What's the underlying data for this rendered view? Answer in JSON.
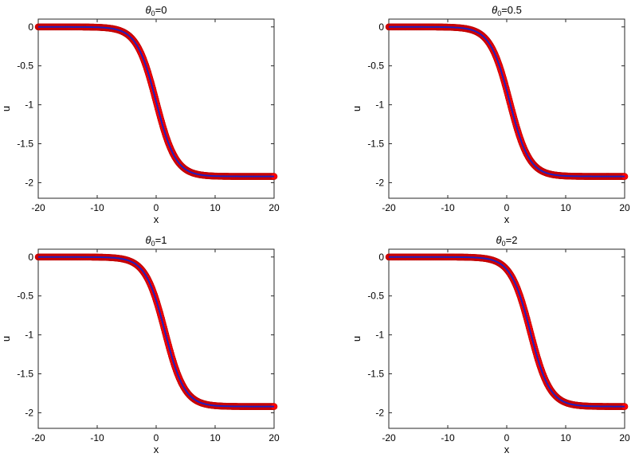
{
  "chart_data": [
    {
      "type": "line",
      "title": {
        "symbol": "θ",
        "subscript": "0",
        "value_text": "=0"
      },
      "xlabel": "x",
      "ylabel": "u",
      "xlim": [
        -20,
        20
      ],
      "ylim": [
        -2.2,
        0.1
      ],
      "xticks": [
        -20,
        -10,
        0,
        10,
        20
      ],
      "yticks": [
        0,
        -0.5,
        -1,
        -1.5,
        -2
      ],
      "xtick_labels": [
        "-20",
        "-10",
        "0",
        "10",
        "20"
      ],
      "ytick_labels": [
        "0",
        "-0.5",
        "-1",
        "-1.5",
        "-2"
      ],
      "curve": {
        "amplitude": -1.92,
        "steepness": 0.6,
        "center": 0
      },
      "series": [
        {
          "kind": "markers",
          "color": "#ff0000",
          "x": [
            -20,
            -19,
            -18,
            -17,
            -16,
            -15,
            -14,
            -13,
            -12,
            -11,
            -10,
            -9,
            -8,
            -7,
            -6,
            -5,
            -4,
            -3,
            -2,
            -1,
            0,
            1,
            2,
            3,
            4,
            5,
            6,
            7,
            8,
            9,
            10,
            11,
            12,
            13,
            14,
            15,
            16,
            17,
            18,
            19,
            20
          ],
          "y": [
            0,
            0,
            0,
            0,
            0,
            0,
            0,
            0,
            0,
            0,
            0,
            -0.01,
            -0.02,
            -0.03,
            -0.05,
            -0.09,
            -0.16,
            -0.26,
            -0.43,
            -0.67,
            -0.96,
            -1.25,
            -1.49,
            -1.66,
            -1.76,
            -1.83,
            -1.87,
            -1.89,
            -1.9,
            -1.91,
            -1.92,
            -1.92,
            -1.92,
            -1.92,
            -1.92,
            -1.92,
            -1.92,
            -1.92,
            -1.92,
            -1.92,
            -1.92
          ]
        },
        {
          "kind": "line",
          "color": "#1f1fbf",
          "x": [
            -20,
            -19,
            -18,
            -17,
            -16,
            -15,
            -14,
            -13,
            -12,
            -11,
            -10,
            -9,
            -8,
            -7,
            -6,
            -5,
            -4,
            -3,
            -2,
            -1,
            0,
            1,
            2,
            3,
            4,
            5,
            6,
            7,
            8,
            9,
            10,
            11,
            12,
            13,
            14,
            15,
            16,
            17,
            18,
            19,
            20
          ],
          "y": [
            0,
            0,
            0,
            0,
            0,
            0,
            0,
            0,
            0,
            0,
            0,
            -0.01,
            -0.02,
            -0.03,
            -0.05,
            -0.09,
            -0.16,
            -0.26,
            -0.43,
            -0.67,
            -0.96,
            -1.25,
            -1.49,
            -1.66,
            -1.76,
            -1.83,
            -1.87,
            -1.89,
            -1.9,
            -1.91,
            -1.92,
            -1.92,
            -1.92,
            -1.92,
            -1.92,
            -1.92,
            -1.92,
            -1.92,
            -1.92,
            -1.92,
            -1.92
          ]
        }
      ]
    },
    {
      "type": "line",
      "title": {
        "symbol": "θ",
        "subscript": "0",
        "value_text": "=0.5"
      },
      "xlabel": "x",
      "ylabel": "u",
      "xlim": [
        -20,
        20
      ],
      "ylim": [
        -2.2,
        0.1
      ],
      "xticks": [
        -20,
        -10,
        0,
        10,
        20
      ],
      "yticks": [
        0,
        -0.5,
        -1,
        -1.5,
        -2
      ],
      "xtick_labels": [
        "-20",
        "-10",
        "0",
        "10",
        "20"
      ],
      "ytick_labels": [
        "0",
        "-0.5",
        "-1",
        "-1.5",
        "-2"
      ],
      "curve": {
        "amplitude": -1.92,
        "steepness": 0.6,
        "center": 0.5
      },
      "series": [
        {
          "kind": "markers",
          "color": "#ff0000",
          "x": [
            -20,
            -19,
            -18,
            -17,
            -16,
            -15,
            -14,
            -13,
            -12,
            -11,
            -10,
            -9,
            -8,
            -7,
            -6,
            -5,
            -4,
            -3,
            -2,
            -1,
            0,
            1,
            2,
            3,
            4,
            5,
            6,
            7,
            8,
            9,
            10,
            11,
            12,
            13,
            14,
            15,
            16,
            17,
            18,
            19,
            20
          ],
          "y": [
            0,
            0,
            0,
            0,
            0,
            0,
            0,
            0,
            0,
            0,
            0,
            0,
            -0.01,
            -0.02,
            -0.04,
            -0.07,
            -0.12,
            -0.21,
            -0.35,
            -0.55,
            -0.82,
            -1.1,
            -1.37,
            -1.57,
            -1.71,
            -1.8,
            -1.85,
            -1.88,
            -1.9,
            -1.91,
            -1.91,
            -1.92,
            -1.92,
            -1.92,
            -1.92,
            -1.92,
            -1.92,
            -1.92,
            -1.92,
            -1.92,
            -1.92
          ]
        },
        {
          "kind": "line",
          "color": "#1f1fbf",
          "x": [
            -20,
            -19,
            -18,
            -17,
            -16,
            -15,
            -14,
            -13,
            -12,
            -11,
            -10,
            -9,
            -8,
            -7,
            -6,
            -5,
            -4,
            -3,
            -2,
            -1,
            0,
            1,
            2,
            3,
            4,
            5,
            6,
            7,
            8,
            9,
            10,
            11,
            12,
            13,
            14,
            15,
            16,
            17,
            18,
            19,
            20
          ],
          "y": [
            0,
            0,
            0,
            0,
            0,
            0,
            0,
            0,
            0,
            0,
            0,
            0,
            -0.01,
            -0.02,
            -0.04,
            -0.07,
            -0.12,
            -0.21,
            -0.35,
            -0.55,
            -0.82,
            -1.1,
            -1.37,
            -1.57,
            -1.71,
            -1.8,
            -1.85,
            -1.88,
            -1.9,
            -1.91,
            -1.91,
            -1.92,
            -1.92,
            -1.92,
            -1.92,
            -1.92,
            -1.92,
            -1.92,
            -1.92,
            -1.92,
            -1.92
          ]
        }
      ]
    },
    {
      "type": "line",
      "title": {
        "symbol": "θ",
        "subscript": "0",
        "value_text": "=1"
      },
      "xlabel": "x",
      "ylabel": "u",
      "xlim": [
        -20,
        20
      ],
      "ylim": [
        -2.2,
        0.1
      ],
      "xticks": [
        -20,
        -10,
        0,
        10,
        20
      ],
      "yticks": [
        0,
        -0.5,
        -1,
        -1.5,
        -2
      ],
      "xtick_labels": [
        "-20",
        "-10",
        "0",
        "10",
        "20"
      ],
      "ytick_labels": [
        "0",
        "-0.5",
        "-1",
        "-1.5",
        "-2"
      ],
      "curve": {
        "amplitude": -1.92,
        "steepness": 0.6,
        "center": 1.5
      },
      "series": [
        {
          "kind": "markers",
          "color": "#ff0000",
          "x": [
            -20,
            -19,
            -18,
            -17,
            -16,
            -15,
            -14,
            -13,
            -12,
            -11,
            -10,
            -9,
            -8,
            -7,
            -6,
            -5,
            -4,
            -3,
            -2,
            -1,
            0,
            1,
            2,
            3,
            4,
            5,
            6,
            7,
            8,
            9,
            10,
            11,
            12,
            13,
            14,
            15,
            16,
            17,
            18,
            19,
            20
          ],
          "y": [
            0,
            0,
            0,
            0,
            0,
            0,
            0,
            0,
            0,
            0,
            0,
            0,
            0,
            -0.01,
            -0.02,
            -0.04,
            -0.07,
            -0.12,
            -0.21,
            -0.35,
            -0.55,
            -0.82,
            -1.1,
            -1.37,
            -1.57,
            -1.71,
            -1.8,
            -1.85,
            -1.88,
            -1.9,
            -1.91,
            -1.91,
            -1.92,
            -1.92,
            -1.92,
            -1.92,
            -1.92,
            -1.92,
            -1.92,
            -1.92,
            -1.92
          ]
        },
        {
          "kind": "line",
          "color": "#1f1fbf",
          "x": [
            -20,
            -19,
            -18,
            -17,
            -16,
            -15,
            -14,
            -13,
            -12,
            -11,
            -10,
            -9,
            -8,
            -7,
            -6,
            -5,
            -4,
            -3,
            -2,
            -1,
            0,
            1,
            2,
            3,
            4,
            5,
            6,
            7,
            8,
            9,
            10,
            11,
            12,
            13,
            14,
            15,
            16,
            17,
            18,
            19,
            20
          ],
          "y": [
            0,
            0,
            0,
            0,
            0,
            0,
            0,
            0,
            0,
            0,
            0,
            0,
            0,
            -0.01,
            -0.02,
            -0.04,
            -0.07,
            -0.12,
            -0.21,
            -0.35,
            -0.55,
            -0.82,
            -1.1,
            -1.37,
            -1.57,
            -1.71,
            -1.8,
            -1.85,
            -1.88,
            -1.9,
            -1.91,
            -1.91,
            -1.92,
            -1.92,
            -1.92,
            -1.92,
            -1.92,
            -1.92,
            -1.92,
            -1.92,
            -1.92
          ]
        }
      ]
    },
    {
      "type": "line",
      "title": {
        "symbol": "θ",
        "subscript": "0",
        "value_text": "=2"
      },
      "xlabel": "x",
      "ylabel": "u",
      "xlim": [
        -20,
        20
      ],
      "ylim": [
        -2.2,
        0.1
      ],
      "xticks": [
        -20,
        -10,
        0,
        10,
        20
      ],
      "yticks": [
        0,
        -0.5,
        -1,
        -1.5,
        -2
      ],
      "xtick_labels": [
        "-20",
        "-10",
        "0",
        "10",
        "20"
      ],
      "ytick_labels": [
        "0",
        "-0.5",
        "-1",
        "-1.5",
        "-2"
      ],
      "curve": {
        "amplitude": -1.92,
        "steepness": 0.6,
        "center": 4
      },
      "series": [
        {
          "kind": "markers",
          "color": "#ff0000",
          "x": [
            -20,
            -19,
            -18,
            -17,
            -16,
            -15,
            -14,
            -13,
            -12,
            -11,
            -10,
            -9,
            -8,
            -7,
            -6,
            -5,
            -4,
            -3,
            -2,
            -1,
            0,
            1,
            2,
            3,
            4,
            5,
            6,
            7,
            8,
            9,
            10,
            11,
            12,
            13,
            14,
            15,
            16,
            17,
            18,
            19,
            20
          ],
          "y": [
            0,
            0,
            0,
            0,
            0,
            0,
            0,
            0,
            0,
            0,
            0,
            0,
            0,
            0,
            0,
            0,
            -0.01,
            -0.02,
            -0.03,
            -0.05,
            -0.09,
            -0.16,
            -0.26,
            -0.43,
            -0.67,
            -0.96,
            -1.25,
            -1.49,
            -1.66,
            -1.76,
            -1.83,
            -1.87,
            -1.89,
            -1.9,
            -1.91,
            -1.92,
            -1.92,
            -1.92,
            -1.92,
            -1.92,
            -1.92
          ]
        },
        {
          "kind": "line",
          "color": "#1f1fbf",
          "x": [
            -20,
            -19,
            -18,
            -17,
            -16,
            -15,
            -14,
            -13,
            -12,
            -11,
            -10,
            -9,
            -8,
            -7,
            -6,
            -5,
            -4,
            -3,
            -2,
            -1,
            0,
            1,
            2,
            3,
            4,
            5,
            6,
            7,
            8,
            9,
            10,
            11,
            12,
            13,
            14,
            15,
            16,
            17,
            18,
            19,
            20
          ],
          "y": [
            0,
            0,
            0,
            0,
            0,
            0,
            0,
            0,
            0,
            0,
            0,
            0,
            0,
            0,
            0,
            0,
            -0.01,
            -0.02,
            -0.03,
            -0.05,
            -0.09,
            -0.16,
            -0.26,
            -0.43,
            -0.67,
            -0.96,
            -1.25,
            -1.49,
            -1.66,
            -1.76,
            -1.83,
            -1.87,
            -1.89,
            -1.9,
            -1.91,
            -1.92,
            -1.92,
            -1.92,
            -1.92,
            -1.92,
            -1.92
          ]
        }
      ]
    }
  ]
}
